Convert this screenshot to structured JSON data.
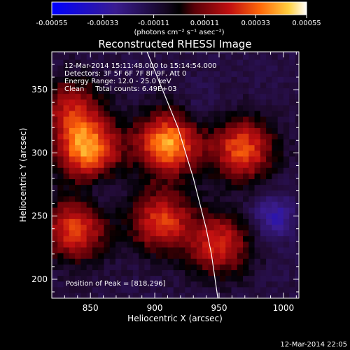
{
  "colorbar": {
    "ticks": [
      "-0.00055",
      "-0.00033",
      "-0.00011",
      "0.00011",
      "0.00033",
      "0.00055"
    ],
    "unit_label": "(photons cm⁻² s⁻¹ asec⁻²)",
    "range": [
      -0.00055,
      0.00055
    ]
  },
  "plot": {
    "title": "Reconstructed RHESSI Image",
    "info_lines": [
      "12-Mar-2014 15:11:48.000 to 15:14:54.000",
      "Detectors: 3F 5F 6F 7F 8F 9F, Att 0",
      "Energy Range: 12.0 - 25.0 keV",
      "Clean     Total counts: 6.49E+03"
    ],
    "peak_label": "Position of Peak = [818,296]",
    "footer_date": "12-Mar-2014 22:05"
  },
  "chart_data": {
    "type": "heatmap",
    "title": "Reconstructed RHESSI Image",
    "xlabel": "Heliocentric X (arcsec)",
    "ylabel": "Heliocentric Y (arcsec)",
    "xlim": [
      820,
      1012
    ],
    "ylim": [
      185,
      380
    ],
    "x_ticks": [
      850,
      900,
      950,
      1000
    ],
    "y_ticks": [
      200,
      250,
      300,
      350
    ],
    "colormap": "blue-black-red-yellow-white",
    "value_range": [
      -0.00055,
      0.00055
    ],
    "peak_position": [
      818,
      296
    ],
    "limb_curve": [
      [
        894,
        380
      ],
      [
        900,
        365
      ],
      [
        910,
        340
      ],
      [
        918,
        320
      ],
      [
        924,
        300
      ],
      [
        930,
        280
      ],
      [
        935,
        260
      ],
      [
        940,
        240
      ],
      [
        944,
        220
      ],
      [
        949,
        185
      ]
    ],
    "bright_sources": [
      {
        "x": 848,
        "y": 303,
        "intensity": 0.00045
      },
      {
        "x": 910,
        "y": 308,
        "intensity": 0.00047
      },
      {
        "x": 968,
        "y": 303,
        "intensity": 0.00038
      },
      {
        "x": 838,
        "y": 240,
        "intensity": 0.00036
      },
      {
        "x": 905,
        "y": 246,
        "intensity": 0.00034
      },
      {
        "x": 950,
        "y": 228,
        "intensity": 0.00032
      },
      {
        "x": 835,
        "y": 335,
        "intensity": 0.00026
      }
    ],
    "dark_sources": [
      {
        "x": 993,
        "y": 250,
        "intensity": -0.00022
      },
      {
        "x": 855,
        "y": 270,
        "intensity": -8e-05
      },
      {
        "x": 935,
        "y": 335,
        "intensity": -6e-05
      }
    ]
  }
}
